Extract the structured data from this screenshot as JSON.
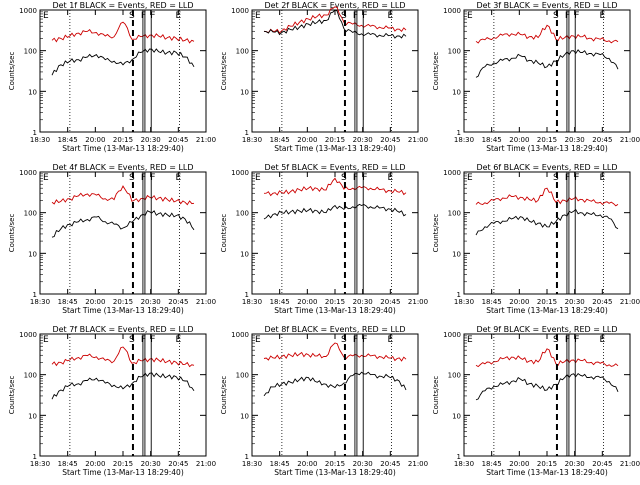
{
  "figure": {
    "common": {
      "start_time_label": "Start Time (13-Mar-13 18:29:40)",
      "ylabel": "Counts/sec",
      "x_ticks": [
        "18:30",
        "18:45",
        "20:00",
        "20:15",
        "20:30",
        "20:45",
        "21:00"
      ],
      "y_ticks": [
        "1",
        "10",
        "100",
        "1000"
      ],
      "y_scale": "log",
      "ylim": [
        1,
        1000
      ],
      "events_color": "#000000",
      "lld_color": "#cc0000",
      "top_markers": [
        "E",
        "S",
        "F",
        "F",
        "E"
      ]
    }
  },
  "chart_data": [
    {
      "type": "line",
      "title": "Det 1f BLACK = Events, RED = LLD",
      "xlabel": "Start Time (13-Mar-13 18:29:40)",
      "ylabel": "Counts/sec",
      "y_scale": "log",
      "ylim": [
        1,
        1000
      ],
      "x": [
        0,
        1,
        2,
        3,
        4,
        5,
        6,
        7,
        8,
        9,
        10,
        11,
        12,
        13,
        14,
        15,
        16
      ],
      "x_tick_labels": [
        "18:30",
        "18:45",
        "20:00",
        "20:15",
        "20:30",
        "20:45",
        "21:00"
      ],
      "series": [
        {
          "name": "LLD",
          "color": "#cc0000",
          "values": [
            180,
            200,
            230,
            270,
            300,
            280,
            230,
            220,
            500,
            190,
            220,
            240,
            230,
            210,
            200,
            180,
            170
          ]
        },
        {
          "name": "Events",
          "color": "#000000",
          "values": [
            25,
            45,
            55,
            60,
            70,
            80,
            60,
            55,
            45,
            60,
            90,
            110,
            95,
            90,
            90,
            70,
            40
          ]
        }
      ]
    },
    {
      "type": "line",
      "title": "Det 2f BLACK = Events, RED = LLD",
      "xlabel": "Start Time (13-Mar-13 18:29:40)",
      "ylabel": "Counts/sec",
      "y_scale": "log",
      "ylim": [
        1,
        1000
      ],
      "x": [
        0,
        1,
        2,
        3,
        4,
        5,
        6,
        7,
        8,
        9,
        10,
        11,
        12,
        13,
        14,
        15,
        16
      ],
      "x_tick_labels": [
        "18:30",
        "18:45",
        "20:00",
        "20:15",
        "20:30",
        "20:45",
        "21:00"
      ],
      "series": [
        {
          "name": "LLD",
          "color": "#cc0000",
          "values": [
            300,
            300,
            310,
            400,
            500,
            600,
            700,
            750,
            1200,
            500,
            450,
            420,
            400,
            380,
            360,
            340,
            320
          ]
        },
        {
          "name": "Events",
          "color": "#000000",
          "values": [
            300,
            290,
            280,
            330,
            380,
            450,
            500,
            550,
            1000,
            350,
            280,
            260,
            250,
            240,
            235,
            230,
            225
          ]
        }
      ]
    },
    {
      "type": "line",
      "title": "Det 3f BLACK = Events, RED = LLD",
      "xlabel": "Start Time (13-Mar-13 18:29:40)",
      "ylabel": "Counts/sec",
      "y_scale": "log",
      "ylim": [
        1,
        1000
      ],
      "x": [
        0,
        1,
        2,
        3,
        4,
        5,
        6,
        7,
        8,
        9,
        10,
        11,
        12,
        13,
        14,
        15,
        16
      ],
      "x_tick_labels": [
        "18:30",
        "18:45",
        "20:00",
        "20:15",
        "20:30",
        "20:45",
        "21:00"
      ],
      "series": [
        {
          "name": "LLD",
          "color": "#cc0000",
          "values": [
            170,
            185,
            210,
            240,
            260,
            250,
            220,
            210,
            420,
            190,
            210,
            230,
            220,
            200,
            190,
            175,
            165
          ]
        },
        {
          "name": "Events",
          "color": "#000000",
          "values": [
            22,
            40,
            50,
            58,
            65,
            75,
            58,
            50,
            40,
            55,
            80,
            100,
            90,
            85,
            80,
            65,
            35
          ]
        }
      ]
    },
    {
      "type": "line",
      "title": "Det 4f BLACK = Events, RED = LLD",
      "xlabel": "Start Time (13-Mar-13 18:29:40)",
      "ylabel": "Counts/sec",
      "y_scale": "log",
      "ylim": [
        1,
        1000
      ],
      "x": [
        0,
        1,
        2,
        3,
        4,
        5,
        6,
        7,
        8,
        9,
        10,
        11,
        12,
        13,
        14,
        15,
        16
      ],
      "x_tick_labels": [
        "18:30",
        "18:45",
        "20:00",
        "20:15",
        "20:30",
        "20:45",
        "21:00"
      ],
      "series": [
        {
          "name": "LLD",
          "color": "#cc0000",
          "values": [
            180,
            190,
            220,
            260,
            290,
            270,
            220,
            210,
            450,
            190,
            220,
            240,
            230,
            210,
            195,
            180,
            170
          ]
        },
        {
          "name": "Events",
          "color": "#000000",
          "values": [
            25,
            40,
            52,
            60,
            68,
            78,
            60,
            52,
            42,
            58,
            85,
            105,
            95,
            88,
            85,
            70,
            38
          ]
        }
      ]
    },
    {
      "type": "line",
      "title": "Det 5f BLACK = Events, RED = LLD",
      "xlabel": "Start Time (13-Mar-13 18:29:40)",
      "ylabel": "Counts/sec",
      "y_scale": "log",
      "ylim": [
        1,
        1000
      ],
      "x": [
        0,
        1,
        2,
        3,
        4,
        5,
        6,
        7,
        8,
        9,
        10,
        11,
        12,
        13,
        14,
        15,
        16
      ],
      "x_tick_labels": [
        "18:30",
        "18:45",
        "20:00",
        "20:15",
        "20:30",
        "20:45",
        "21:00"
      ],
      "series": [
        {
          "name": "LLD",
          "color": "#cc0000",
          "values": [
            300,
            300,
            310,
            330,
            370,
            400,
            390,
            360,
            700,
            380,
            400,
            410,
            400,
            370,
            350,
            330,
            310
          ]
        },
        {
          "name": "Events",
          "color": "#000000",
          "values": [
            70,
            90,
            100,
            105,
            110,
            115,
            110,
            100,
            150,
            120,
            140,
            150,
            140,
            130,
            125,
            110,
            90
          ]
        }
      ]
    },
    {
      "type": "line",
      "title": "Det 6f BLACK = Events, RED = LLD",
      "xlabel": "Start Time (13-Mar-13 18:29:40)",
      "ylabel": "Counts/sec",
      "y_scale": "log",
      "ylim": [
        1,
        1000
      ],
      "x": [
        0,
        1,
        2,
        3,
        4,
        5,
        6,
        7,
        8,
        9,
        10,
        11,
        12,
        13,
        14,
        15,
        16
      ],
      "x_tick_labels": [
        "18:30",
        "18:45",
        "20:00",
        "20:15",
        "20:30",
        "20:45",
        "21:00"
      ],
      "series": [
        {
          "name": "LLD",
          "color": "#cc0000",
          "values": [
            160,
            175,
            200,
            230,
            250,
            240,
            210,
            200,
            400,
            180,
            200,
            220,
            210,
            190,
            180,
            170,
            160
          ]
        },
        {
          "name": "Events",
          "color": "#000000",
          "values": [
            28,
            45,
            55,
            62,
            70,
            80,
            62,
            55,
            45,
            60,
            88,
            108,
            98,
            90,
            88,
            72,
            40
          ]
        }
      ]
    },
    {
      "type": "line",
      "title": "Det 7f BLACK = Events, RED = LLD",
      "xlabel": "Start Time (13-Mar-13 18:29:40)",
      "ylabel": "Counts/sec",
      "y_scale": "log",
      "ylim": [
        1,
        1000
      ],
      "x": [
        0,
        1,
        2,
        3,
        4,
        5,
        6,
        7,
        8,
        9,
        10,
        11,
        12,
        13,
        14,
        15,
        16
      ],
      "x_tick_labels": [
        "18:30",
        "18:45",
        "20:00",
        "20:15",
        "20:30",
        "20:45",
        "21:00"
      ],
      "series": [
        {
          "name": "LLD",
          "color": "#cc0000",
          "values": [
            180,
            200,
            230,
            265,
            295,
            275,
            225,
            215,
            480,
            190,
            220,
            240,
            230,
            210,
            200,
            180,
            170
          ]
        },
        {
          "name": "Events",
          "color": "#000000",
          "values": [
            25,
            42,
            55,
            60,
            72,
            82,
            62,
            55,
            45,
            60,
            88,
            108,
            95,
            90,
            88,
            70,
            40
          ]
        }
      ]
    },
    {
      "type": "line",
      "title": "Det 8f BLACK = Events, RED = LLD",
      "xlabel": "Start Time (13-Mar-13 18:29:40)",
      "ylabel": "Counts/sec",
      "y_scale": "log",
      "ylim": [
        1,
        1000
      ],
      "x": [
        0,
        1,
        2,
        3,
        4,
        5,
        6,
        7,
        8,
        9,
        10,
        11,
        12,
        13,
        14,
        15,
        16
      ],
      "x_tick_labels": [
        "18:30",
        "18:45",
        "20:00",
        "20:15",
        "20:30",
        "20:45",
        "21:00"
      ],
      "series": [
        {
          "name": "LLD",
          "color": "#cc0000",
          "values": [
            250,
            260,
            280,
            300,
            320,
            310,
            290,
            280,
            600,
            270,
            290,
            300,
            290,
            280,
            260,
            250,
            240
          ]
        },
        {
          "name": "Events",
          "color": "#000000",
          "values": [
            30,
            50,
            60,
            65,
            75,
            85,
            65,
            58,
            48,
            62,
            95,
            115,
            100,
            92,
            90,
            75,
            42
          ]
        }
      ]
    },
    {
      "type": "line",
      "title": "Det 9f BLACK = Events, RED = LLD",
      "xlabel": "Start Time (13-Mar-13 18:29:40)",
      "ylabel": "Counts/sec",
      "y_scale": "log",
      "ylim": [
        1,
        1000
      ],
      "x": [
        0,
        1,
        2,
        3,
        4,
        5,
        6,
        7,
        8,
        9,
        10,
        11,
        12,
        13,
        14,
        15,
        16
      ],
      "x_tick_labels": [
        "18:30",
        "18:45",
        "20:00",
        "20:15",
        "20:30",
        "20:45",
        "21:00"
      ],
      "series": [
        {
          "name": "LLD",
          "color": "#cc0000",
          "values": [
            170,
            185,
            210,
            245,
            270,
            255,
            215,
            205,
            430,
            185,
            210,
            230,
            220,
            200,
            190,
            175,
            165
          ]
        },
        {
          "name": "Events",
          "color": "#000000",
          "values": [
            24,
            40,
            52,
            58,
            68,
            78,
            60,
            52,
            42,
            58,
            85,
            105,
            92,
            88,
            85,
            68,
            38
          ]
        }
      ]
    }
  ]
}
